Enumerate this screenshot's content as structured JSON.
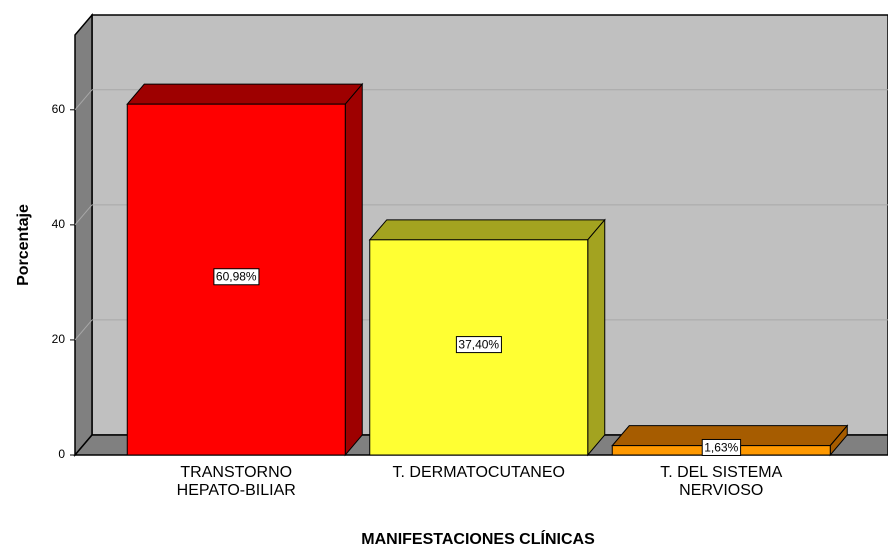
{
  "chart_data": {
    "type": "bar",
    "x_label": "MANIFESTACIONES CLÍNICAS",
    "y_label": "Porcentaje",
    "categories": [
      "TRANSTORNO\nHEPATO-BILIAR",
      "T. DERMATOCUTANEO",
      "T. DEL SISTEMA\nNERVIOSO"
    ],
    "values": [
      60.98,
      37.4,
      1.63
    ],
    "value_labels": [
      "60,98%",
      "37,40%",
      "1,63%"
    ],
    "colors": [
      "#ff0000",
      "#ffff33",
      "#ff9900"
    ],
    "shade_colors": [
      "#9e0000",
      "#a3a320",
      "#a65c00"
    ],
    "ylim": [
      0,
      73
    ],
    "yticks": [
      0,
      20,
      40,
      60
    ],
    "grid": true
  }
}
